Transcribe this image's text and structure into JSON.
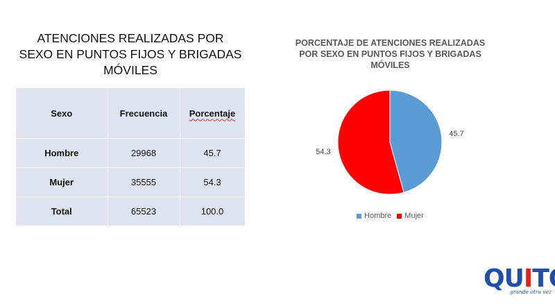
{
  "table": {
    "title": "ATENCIONES REALIZADAS POR SEXO EN PUNTOS FIJOS Y BRIGADAS MÓVILES",
    "headers": [
      "Sexo",
      "Frecuencia",
      "Porcentaje"
    ],
    "rows": [
      [
        "Hombre",
        "29968",
        "45.7"
      ],
      [
        "Mujer",
        "35555",
        "54.3"
      ],
      [
        "Total",
        "65523",
        "100.0"
      ]
    ]
  },
  "chart_data": {
    "type": "pie",
    "title": "PORCENTAJE DE ATENCIONES REALIZADAS POR SEXO EN PUNTOS FIJOS Y BRIGADAS MÓVILES",
    "title_lines": [
      "PORCENTAJE DE ATENCIONES REALIZADAS",
      "POR SEXO EN PUNTOS FIJOS Y BRIGADAS",
      "MÓVILES"
    ],
    "categories": [
      "Hombre",
      "Mujer"
    ],
    "values": [
      45.7,
      54.3
    ],
    "data_labels": [
      "45.7",
      "54.3"
    ],
    "colors": [
      "#5b9bd5",
      "#ff0000"
    ],
    "legend_position": "bottom"
  },
  "logo": {
    "word": "QUITO",
    "word_parts": [
      "QU",
      "I",
      "TO"
    ],
    "tagline": "grande otra vez"
  }
}
